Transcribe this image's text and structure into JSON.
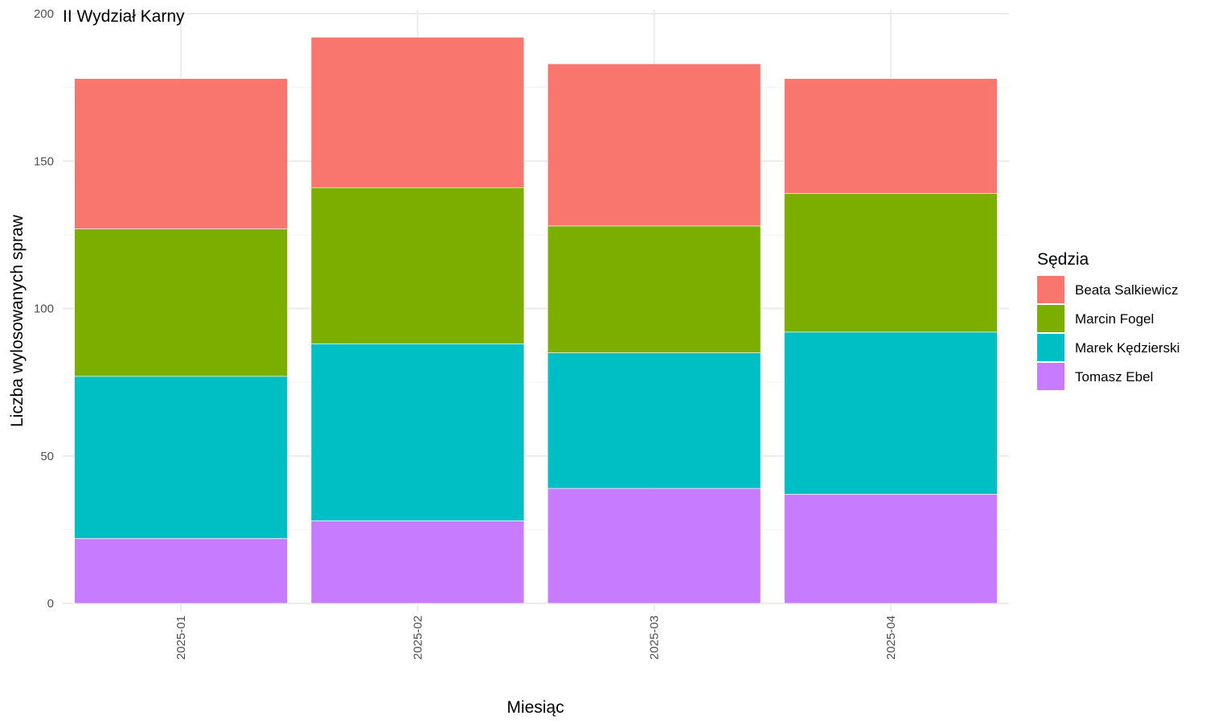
{
  "chart_data": {
    "type": "bar",
    "stacked": true,
    "title": "II Wydział Karny",
    "xlabel": "Miesiąc",
    "ylabel": "Liczba wylosowanych spraw",
    "ylim": [
      0,
      200
    ],
    "yticks": [
      0,
      50,
      100,
      150,
      200
    ],
    "grid": true,
    "categories": [
      "2025-01",
      "2025-02",
      "2025-03",
      "2025-04"
    ],
    "legend": {
      "title": "Sędzia",
      "position": "right"
    },
    "series": [
      {
        "name": "Tomasz Ebel",
        "color": "#C77CFF",
        "values": [
          22,
          28,
          39,
          37
        ]
      },
      {
        "name": "Marek Kędzierski",
        "color": "#00BFC4",
        "values": [
          55,
          60,
          46,
          55
        ]
      },
      {
        "name": "Marcin Fogel",
        "color": "#7CAE00",
        "values": [
          50,
          53,
          43,
          47
        ]
      },
      {
        "name": "Beata Salkiewicz",
        "color": "#F8766D",
        "values": [
          51,
          51,
          55,
          39
        ]
      }
    ],
    "legend_order": [
      "Beata Salkiewicz",
      "Marcin Fogel",
      "Marek Kędzierski",
      "Tomasz Ebel"
    ]
  }
}
